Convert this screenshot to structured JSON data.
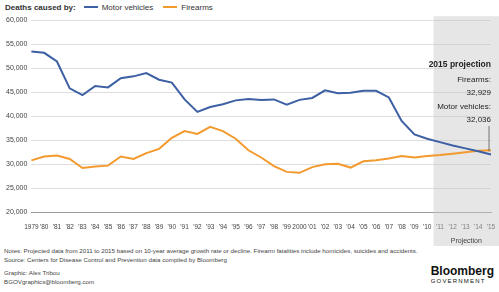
{
  "chart_data": {
    "type": "line",
    "title": "Deaths caused by:",
    "categories": [
      "1979",
      "'80",
      "'81",
      "'82",
      "'83",
      "'84",
      "'85",
      "'86",
      "'87",
      "'88",
      "'89",
      "'90",
      "'91",
      "'92",
      "'93",
      "'94",
      "'95",
      "'96",
      "'97",
      "'98",
      "'99",
      "2000",
      "'01",
      "'02",
      "'03",
      "'04",
      "'05",
      "'06",
      "'07",
      "'08",
      "'09",
      "'10",
      "'11",
      "'12",
      "'13",
      "'14",
      "'15"
    ],
    "series": [
      {
        "name": "Motor vehicles",
        "color": "#3d5fa3",
        "values": [
          53500,
          53200,
          51400,
          45800,
          44400,
          46300,
          46000,
          47900,
          48300,
          49000,
          47600,
          47000,
          43500,
          40900,
          41900,
          42500,
          43300,
          43600,
          43400,
          43500,
          42400,
          43400,
          43800,
          45400,
          44800,
          44900,
          45300,
          45300,
          43900,
          39000,
          36200,
          35300,
          34600,
          33900,
          33300,
          32700,
          32036
        ]
      },
      {
        "name": "Firearms",
        "color": "#f39a2e",
        "values": [
          30800,
          31600,
          31800,
          31100,
          29200,
          29500,
          29700,
          31600,
          31100,
          32300,
          33200,
          35500,
          36900,
          36300,
          37800,
          36900,
          35300,
          32900,
          31400,
          29600,
          28400,
          28200,
          29400,
          30000,
          30100,
          29300,
          30600,
          30800,
          31200,
          31700,
          31400,
          31700,
          31900,
          32200,
          32500,
          32800,
          32929
        ]
      }
    ],
    "ylim": [
      20000,
      60000
    ],
    "yticks": [
      {
        "value": 20000,
        "label": "20,000"
      },
      {
        "value": 25000,
        "label": "25,000"
      },
      {
        "value": 30000,
        "label": "30,000"
      },
      {
        "value": 35000,
        "label": "35,000"
      },
      {
        "value": 40000,
        "label": "40,000"
      },
      {
        "value": 45000,
        "label": "45,000"
      },
      {
        "value": 50000,
        "label": "50,000"
      },
      {
        "value": 55000,
        "label": "55,000"
      },
      {
        "value": 60000,
        "label": "60,000"
      }
    ],
    "grid": true,
    "legend": "top-left",
    "marker": "none",
    "line_style": "solid",
    "annotations": [
      {
        "kind": "shaded_region",
        "from": "'11",
        "to": "'15",
        "label": "Projection"
      },
      {
        "kind": "text_box",
        "lines": [
          "2015 projection",
          "Firearms:",
          "32,929",
          "Motor vehicles:",
          "32,036"
        ]
      }
    ],
    "notes": [
      "Notes: Projected data from 2011 to 2015 based on 10-year average growth rate or decline. Firearm fatalities include homicides, suicides and accidents.",
      "Source: Centers for Disease Control and Prevention data compiled by Bloomberg",
      "Graphic: Alex Tribou",
      "BGOVgraphics@bloomberg.com"
    ],
    "brand": [
      "Bloomberg",
      "GOVERNMENT"
    ]
  }
}
